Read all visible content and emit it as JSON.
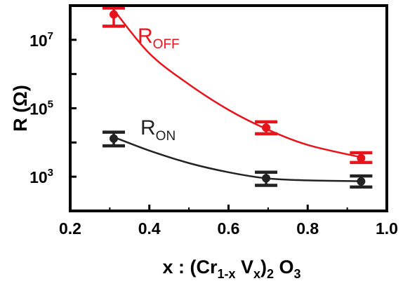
{
  "chart_data": {
    "type": "scatter",
    "xlabel": {
      "main": "x : (Cr",
      "sub1": "1-x",
      "mid": " V",
      "sub2": "x",
      "close": ")",
      "sub3": "2",
      "tail": " O",
      "sub4": "3"
    },
    "ylabel": "R (Ω)",
    "xlim": [
      0.2,
      1.0
    ],
    "ylim": [
      100,
      100000000
    ],
    "yscale": "log",
    "x_ticks": [
      "0.2",
      "0.4",
      "0.6",
      "0.8",
      "1.0"
    ],
    "y_ticks": [
      {
        "base": "10",
        "exp": "7",
        "value": 10000000
      },
      {
        "base": "10",
        "exp": "5",
        "value": 100000
      },
      {
        "base": "10",
        "exp": "3",
        "value": 1000
      }
    ],
    "series": [
      {
        "name": "R_OFF",
        "label": {
          "main": "R",
          "sub": "OFF"
        },
        "color": "#e8141c",
        "x": [
          0.31,
          0.695,
          0.935
        ],
        "y": [
          55000000,
          27000,
          3500
        ],
        "err_low": [
          25000000,
          18000,
          2600
        ],
        "err_high": [
          85000000,
          40000,
          5000
        ],
        "fit_x": [
          0.31,
          0.4,
          0.5,
          0.6,
          0.695,
          0.8,
          0.935
        ],
        "fit_y": [
          75000000,
          4000000,
          500000,
          90000,
          25000,
          8500,
          3700
        ]
      },
      {
        "name": "R_ON",
        "label": {
          "main": "R",
          "sub": "ON"
        },
        "color": "#222222",
        "x": [
          0.31,
          0.695,
          0.935
        ],
        "y": [
          13000,
          900,
          730
        ],
        "err_low": [
          8000,
          560,
          500
        ],
        "err_high": [
          20000,
          1350,
          1050
        ],
        "fit_x": [
          0.32,
          0.4,
          0.5,
          0.6,
          0.695,
          0.8,
          0.935
        ],
        "fit_y": [
          13000,
          5800,
          2500,
          1350,
          900,
          780,
          740
        ]
      }
    ]
  }
}
